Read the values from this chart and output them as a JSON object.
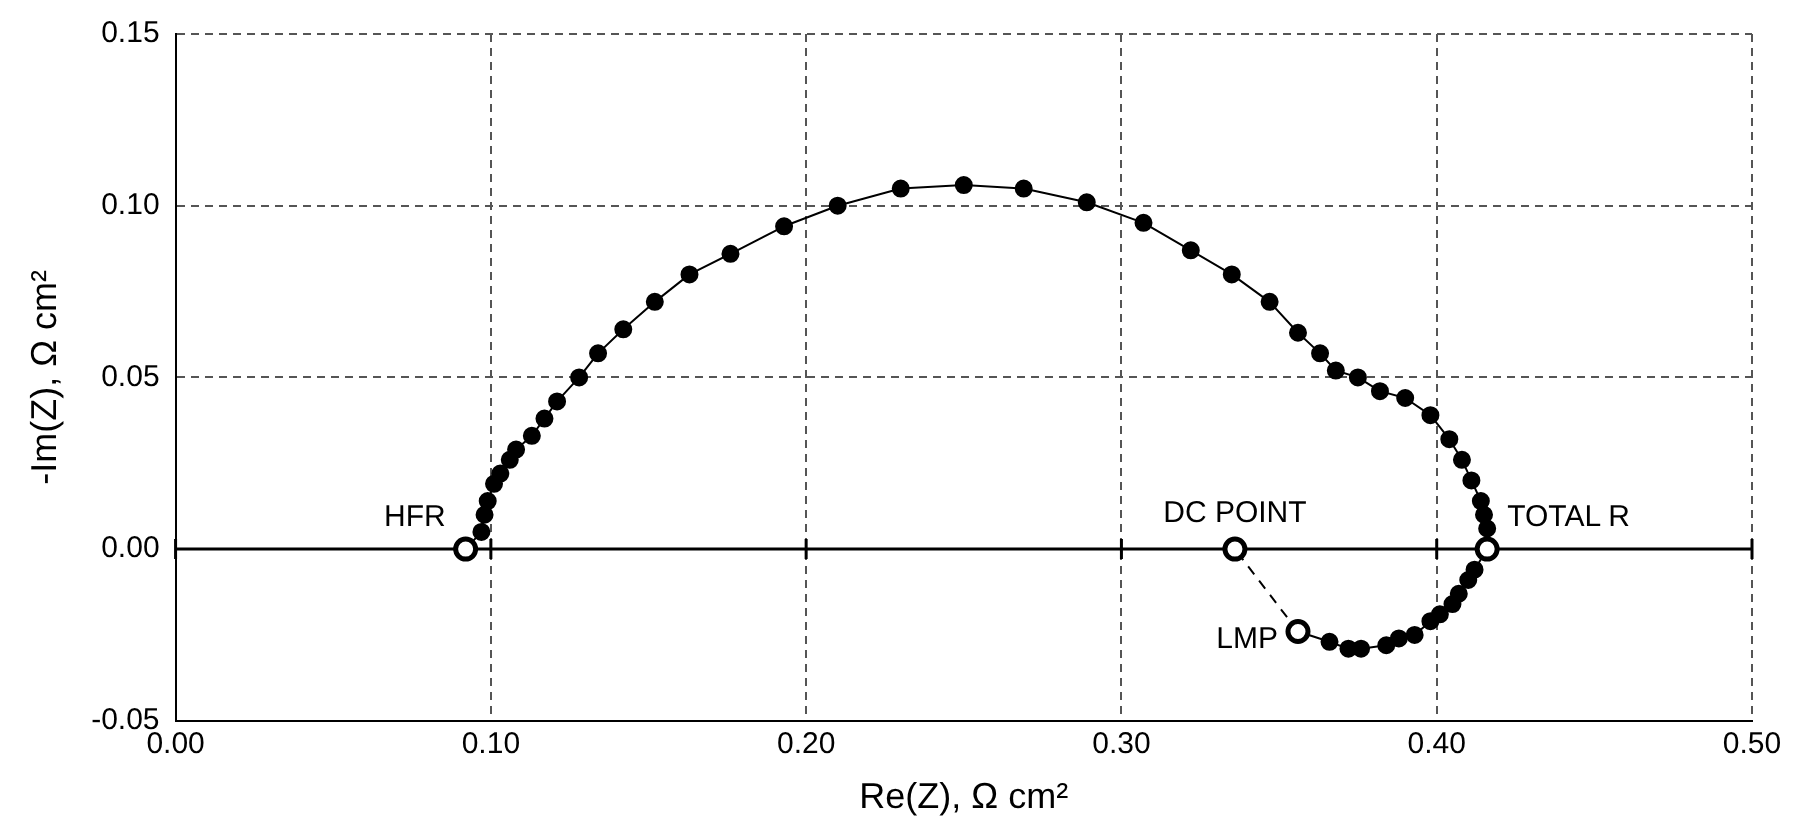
{
  "chart_data": {
    "type": "line",
    "xlabel": "Re(Z), Ω cm²",
    "ylabel": "-Im(Z), Ω cm²",
    "xlim": [
      0,
      0.5
    ],
    "ylim": [
      -0.05,
      0.15
    ],
    "xticks": [
      {
        "value": 0,
        "label": "0.00"
      },
      {
        "value": 0.1,
        "label": "0.10"
      },
      {
        "value": 0.2,
        "label": "0.20"
      },
      {
        "value": 0.3,
        "label": "0.30"
      },
      {
        "value": 0.4,
        "label": "0.40"
      },
      {
        "value": 0.5,
        "label": "0.50"
      }
    ],
    "yticks": [
      {
        "value": -0.05,
        "label": "-0.05"
      },
      {
        "value": 0,
        "label": "0.00"
      },
      {
        "value": 0.05,
        "label": "0.05"
      },
      {
        "value": 0.1,
        "label": "0.10"
      },
      {
        "value": 0.15,
        "label": "0.15"
      }
    ],
    "grid": true,
    "legend": false,
    "ref_lines": [
      {
        "axis": "y",
        "value": 0,
        "color": "#000000"
      }
    ],
    "series": [
      {
        "type": "line",
        "color": "#000000",
        "marker": "circle",
        "line_style": "solid",
        "x": [
          0.092,
          0.097,
          0.098,
          0.099,
          0.101,
          0.103,
          0.106,
          0.108,
          0.113,
          0.117,
          0.121,
          0.128,
          0.134,
          0.142,
          0.152,
          0.163,
          0.176,
          0.193,
          0.21,
          0.23,
          0.25,
          0.269,
          0.289,
          0.307,
          0.322,
          0.335,
          0.347,
          0.356,
          0.363,
          0.368,
          0.375,
          0.382,
          0.39,
          0.398,
          0.404,
          0.408,
          0.411,
          0.414,
          0.415,
          0.416,
          0.416,
          0.412,
          0.41,
          0.407,
          0.405,
          0.401,
          0.398,
          0.393,
          0.388,
          0.384,
          0.376,
          0.372,
          0.366,
          0.356
        ],
        "values": [
          0,
          0.005,
          0.01,
          0.014,
          0.019,
          0.022,
          0.026,
          0.029,
          0.033,
          0.038,
          0.043,
          0.05,
          0.057,
          0.064,
          0.072,
          0.08,
          0.086,
          0.094,
          0.1,
          0.105,
          0.106,
          0.105,
          0.101,
          0.095,
          0.087,
          0.08,
          0.072,
          0.063,
          0.057,
          0.052,
          0.05,
          0.046,
          0.044,
          0.039,
          0.032,
          0.026,
          0.02,
          0.014,
          0.01,
          0.006,
          0,
          -0.006,
          -0.009,
          -0.013,
          -0.016,
          -0.019,
          -0.021,
          -0.025,
          -0.026,
          -0.028,
          -0.029,
          -0.029,
          -0.027,
          -0.024
        ]
      },
      {
        "type": "line",
        "color": "#000000",
        "marker": "none",
        "line_style": "dashed",
        "x": [
          0.356,
          0.336
        ],
        "values": [
          -0.024,
          0
        ]
      },
      {
        "type": "scatter",
        "color": "#000000",
        "marker": "circle",
        "x": [
          0.092,
          0.336,
          0.416,
          0.356
        ],
        "values": [
          0,
          0,
          0,
          -0.024
        ]
      }
    ],
    "annotations": [
      {
        "text": "HFR",
        "x": 0.092,
        "y": 0
      },
      {
        "text": "DC POINT",
        "x": 0.336,
        "y": 0
      },
      {
        "text": "TOTAL R",
        "x": 0.416,
        "y": 0
      },
      {
        "text": "LMP",
        "x": 0.356,
        "y": -0.024
      }
    ]
  }
}
